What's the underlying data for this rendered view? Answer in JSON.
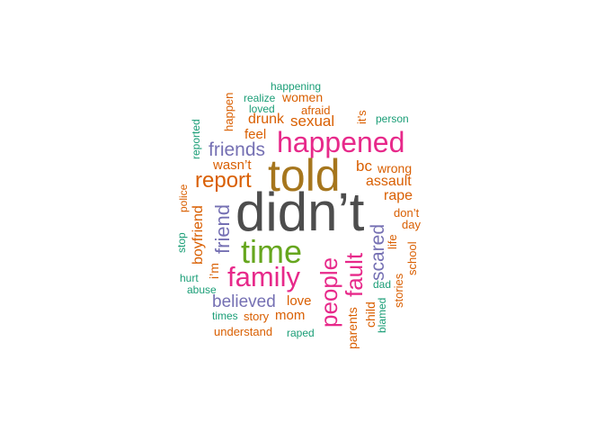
{
  "words": [
    {
      "text": "didn’t",
      "color": "#4d4d4d",
      "weight": 1.0
    },
    {
      "text": "told",
      "color": "#a6761d",
      "weight": 0.78
    },
    {
      "text": "happened",
      "color": "#e7298a",
      "weight": 0.5
    },
    {
      "text": "time",
      "color": "#66a61e",
      "weight": 0.55
    },
    {
      "text": "family",
      "color": "#e7298a",
      "weight": 0.5
    },
    {
      "text": "people",
      "color": "#e7298a",
      "weight": 0.42
    },
    {
      "text": "fault",
      "color": "#e7298a",
      "weight": 0.4
    },
    {
      "text": "report",
      "color": "#d95f02",
      "weight": 0.38
    },
    {
      "text": "friends",
      "color": "#7570b3",
      "weight": 0.34
    },
    {
      "text": "friend",
      "color": "#7570b3",
      "weight": 0.32
    },
    {
      "text": "scared",
      "color": "#7570b3",
      "weight": 0.32
    },
    {
      "text": "believed",
      "color": "#7570b3",
      "weight": 0.3
    },
    {
      "text": "assault",
      "color": "#d95f02",
      "weight": 0.26
    },
    {
      "text": "bc",
      "color": "#d95f02",
      "weight": 0.26
    },
    {
      "text": "sexual",
      "color": "#d95f02",
      "weight": 0.25
    },
    {
      "text": "drunk",
      "color": "#d95f02",
      "weight": 0.25
    },
    {
      "text": "rape",
      "color": "#d95f02",
      "weight": 0.24
    },
    {
      "text": "boyfriend",
      "color": "#d95f02",
      "weight": 0.24
    },
    {
      "text": "wasn’t",
      "color": "#d95f02",
      "weight": 0.22
    },
    {
      "text": "feel",
      "color": "#d95f02",
      "weight": 0.21
    },
    {
      "text": "love",
      "color": "#d95f02",
      "weight": 0.21
    },
    {
      "text": "mom",
      "color": "#d95f02",
      "weight": 0.21
    },
    {
      "text": "parents",
      "color": "#d95f02",
      "weight": 0.21
    },
    {
      "text": "women",
      "color": "#d95f02",
      "weight": 0.2
    },
    {
      "text": "wrong",
      "color": "#d95f02",
      "weight": 0.2
    },
    {
      "text": "i’m",
      "color": "#d95f02",
      "weight": 0.2
    },
    {
      "text": "school",
      "color": "#d95f02",
      "weight": 0.19
    },
    {
      "text": "life",
      "color": "#d95f02",
      "weight": 0.19
    },
    {
      "text": "day",
      "color": "#d95f02",
      "weight": 0.19
    },
    {
      "text": "don’t",
      "color": "#d95f02",
      "weight": 0.19
    },
    {
      "text": "child",
      "color": "#d95f02",
      "weight": 0.19
    },
    {
      "text": "stories",
      "color": "#d95f02",
      "weight": 0.19
    },
    {
      "text": "story",
      "color": "#d95f02",
      "weight": 0.18
    },
    {
      "text": "understand",
      "color": "#d95f02",
      "weight": 0.18
    },
    {
      "text": "afraid",
      "color": "#d95f02",
      "weight": 0.18
    },
    {
      "text": "happen",
      "color": "#d95f02",
      "weight": 0.18
    },
    {
      "text": "it’s",
      "color": "#d95f02",
      "weight": 0.18
    },
    {
      "text": "police",
      "color": "#d95f02",
      "weight": 0.17
    },
    {
      "text": "happening",
      "color": "#1b9e77",
      "weight": 0.16
    },
    {
      "text": "realize",
      "color": "#1b9e77",
      "weight": 0.16
    },
    {
      "text": "loved",
      "color": "#1b9e77",
      "weight": 0.16
    },
    {
      "text": "person",
      "color": "#1b9e77",
      "weight": 0.16
    },
    {
      "text": "reported",
      "color": "#1b9e77",
      "weight": 0.16
    },
    {
      "text": "stop",
      "color": "#1b9e77",
      "weight": 0.16
    },
    {
      "text": "hurt",
      "color": "#1b9e77",
      "weight": 0.16
    },
    {
      "text": "abuse",
      "color": "#1b9e77",
      "weight": 0.16
    },
    {
      "text": "times",
      "color": "#1b9e77",
      "weight": 0.16
    },
    {
      "text": "dad",
      "color": "#1b9e77",
      "weight": 0.16
    },
    {
      "text": "blamed",
      "color": "#1b9e77",
      "weight": 0.16
    },
    {
      "text": "raped",
      "color": "#1b9e77",
      "weight": 0.16
    }
  ]
}
